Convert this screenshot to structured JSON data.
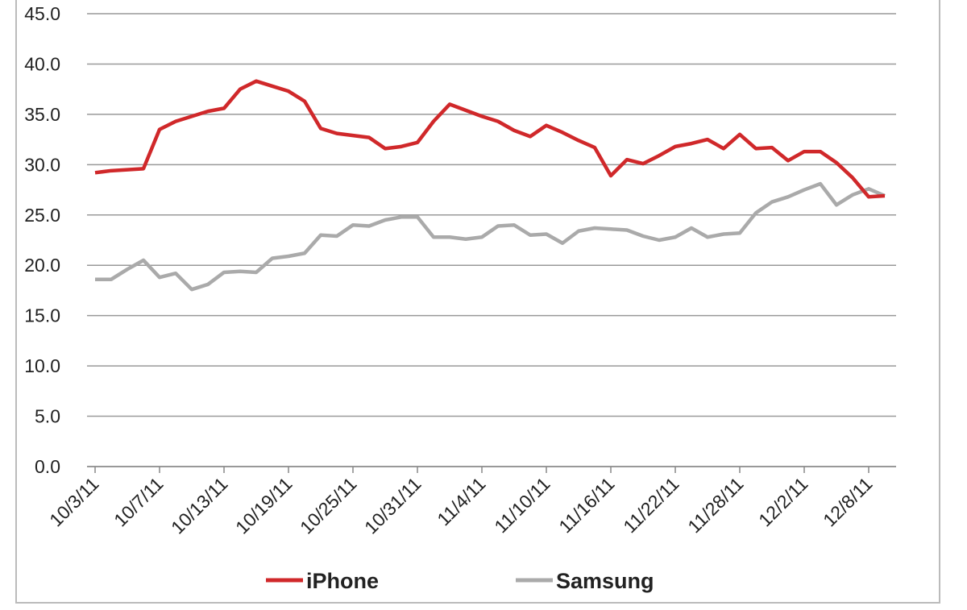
{
  "chart_data": {
    "type": "line",
    "categories": [
      "10/3/11",
      null,
      null,
      null,
      "10/7/11",
      null,
      null,
      null,
      "10/13/11",
      null,
      null,
      null,
      "10/19/11",
      null,
      null,
      null,
      "10/25/11",
      null,
      null,
      null,
      "10/31/11",
      null,
      null,
      null,
      "11/4/11",
      null,
      null,
      null,
      "11/10/11",
      null,
      null,
      null,
      "11/16/11",
      null,
      null,
      null,
      "11/22/11",
      null,
      null,
      null,
      "11/28/11",
      null,
      null,
      null,
      "12/2/11",
      null,
      null,
      null,
      "12/8/11",
      null
    ],
    "series": [
      {
        "name": "iPhone",
        "color": "#d0282a",
        "values": [
          29.2,
          29.4,
          29.5,
          29.6,
          33.5,
          34.3,
          34.8,
          35.3,
          35.6,
          37.5,
          38.3,
          37.8,
          37.3,
          36.3,
          33.6,
          33.1,
          32.9,
          32.7,
          31.6,
          31.8,
          32.2,
          34.3,
          36.0,
          35.4,
          34.8,
          34.3,
          33.4,
          32.8,
          33.9,
          33.2,
          32.4,
          31.7,
          28.9,
          30.5,
          30.1,
          30.9,
          31.8,
          32.1,
          32.5,
          31.6,
          33.0,
          31.6,
          31.7,
          30.4,
          31.3,
          31.3,
          30.2,
          28.7,
          26.8,
          26.9
        ]
      },
      {
        "name": "Samsung",
        "color": "#aaaaaa",
        "values": [
          18.6,
          18.6,
          19.6,
          20.5,
          18.8,
          19.2,
          17.6,
          18.1,
          19.3,
          19.4,
          19.3,
          20.7,
          20.9,
          21.2,
          23.0,
          22.9,
          24.0,
          23.9,
          24.5,
          24.8,
          24.8,
          22.8,
          22.8,
          22.6,
          22.8,
          23.9,
          24.0,
          23.0,
          23.1,
          22.2,
          23.4,
          23.7,
          23.6,
          23.5,
          22.9,
          22.5,
          22.8,
          23.7,
          22.8,
          23.1,
          23.2,
          25.2,
          26.3,
          26.8,
          27.5,
          28.1,
          26.0,
          27.0,
          27.6,
          26.9
        ]
      }
    ],
    "ylim": [
      0,
      45
    ],
    "yticks": [
      {
        "value": 0,
        "label": "0.0"
      },
      {
        "value": 5,
        "label": "5.0"
      },
      {
        "value": 10,
        "label": "10.0"
      },
      {
        "value": 15,
        "label": "15.0"
      },
      {
        "value": 20,
        "label": "20.0"
      },
      {
        "value": 25,
        "label": "25.0"
      },
      {
        "value": 30,
        "label": "30.0"
      },
      {
        "value": 35,
        "label": "35.0"
      },
      {
        "value": 40,
        "label": "40.0"
      },
      {
        "value": 45,
        "label": "45.0"
      }
    ],
    "grid": true,
    "legend": "bottom"
  }
}
